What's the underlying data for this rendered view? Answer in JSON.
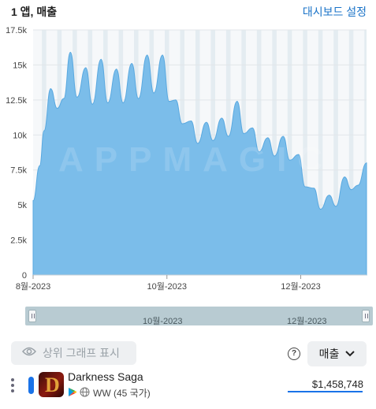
{
  "header": {
    "title": "1 앱, 매출",
    "dashboard_link": "대시보드 설정"
  },
  "chart_data": {
    "type": "area",
    "x_start": "2023-08-01",
    "x_end": "2023-12-31",
    "ylim": [
      0,
      17500
    ],
    "yticks": [
      0,
      2500,
      5000,
      7500,
      10000,
      12500,
      15000,
      17500
    ],
    "ytick_labels": [
      "0",
      "2.5k",
      "5k",
      "7.5k",
      "10k",
      "12.5k",
      "15k",
      "17.5k"
    ],
    "xticks": [
      {
        "date": "2023-08-01",
        "label": "8월-2023"
      },
      {
        "date": "2023-10-01",
        "label": "10월-2023"
      },
      {
        "date": "2023-12-01",
        "label": "12월-2023"
      }
    ],
    "weekend_stripes": true,
    "watermark": "APPMAGIC",
    "series_color": "#7bbdea",
    "series": [
      {
        "name": "Darkness Saga",
        "points": [
          [
            "2023-08-01",
            5300
          ],
          [
            "2023-08-04",
            7800
          ],
          [
            "2023-08-06",
            10300
          ],
          [
            "2023-08-09",
            13300
          ],
          [
            "2023-08-12",
            11900
          ],
          [
            "2023-08-15",
            12600
          ],
          [
            "2023-08-18",
            15900
          ],
          [
            "2023-08-21",
            12700
          ],
          [
            "2023-08-25",
            14800
          ],
          [
            "2023-08-28",
            12200
          ],
          [
            "2023-09-01",
            15400
          ],
          [
            "2023-09-04",
            12300
          ],
          [
            "2023-09-08",
            14700
          ],
          [
            "2023-09-11",
            12300
          ],
          [
            "2023-09-15",
            15100
          ],
          [
            "2023-09-18",
            12600
          ],
          [
            "2023-09-22",
            15700
          ],
          [
            "2023-09-25",
            13000
          ],
          [
            "2023-09-29",
            15700
          ],
          [
            "2023-10-02",
            12400
          ],
          [
            "2023-10-05",
            12500
          ],
          [
            "2023-10-08",
            10800
          ],
          [
            "2023-10-12",
            11000
          ],
          [
            "2023-10-15",
            9400
          ],
          [
            "2023-10-19",
            10900
          ],
          [
            "2023-10-22",
            9600
          ],
          [
            "2023-10-26",
            11200
          ],
          [
            "2023-10-29",
            9900
          ],
          [
            "2023-11-02",
            12400
          ],
          [
            "2023-11-05",
            10100
          ],
          [
            "2023-11-09",
            10500
          ],
          [
            "2023-11-12",
            8800
          ],
          [
            "2023-11-16",
            9800
          ],
          [
            "2023-11-19",
            8500
          ],
          [
            "2023-11-23",
            9900
          ],
          [
            "2023-11-26",
            8200
          ],
          [
            "2023-11-30",
            8600
          ],
          [
            "2023-12-03",
            6300
          ],
          [
            "2023-12-07",
            6200
          ],
          [
            "2023-12-10",
            4700
          ],
          [
            "2023-12-14",
            5700
          ],
          [
            "2023-12-17",
            4900
          ],
          [
            "2023-12-21",
            7000
          ],
          [
            "2023-12-24",
            6100
          ],
          [
            "2023-12-27",
            6400
          ],
          [
            "2023-12-31",
            8000
          ]
        ]
      }
    ]
  },
  "scroller": {
    "label_oct": "10월-2023",
    "label_dec": "12월-2023"
  },
  "controls": {
    "top_graph_label": "상위 그래프 표시",
    "help_glyph": "?",
    "metric_label": "매출"
  },
  "legend_row": {
    "app_name": "Darkness Saga",
    "region": "WW (45 국가)",
    "value": "$1,458,748",
    "series_color": "#1a73e8"
  }
}
